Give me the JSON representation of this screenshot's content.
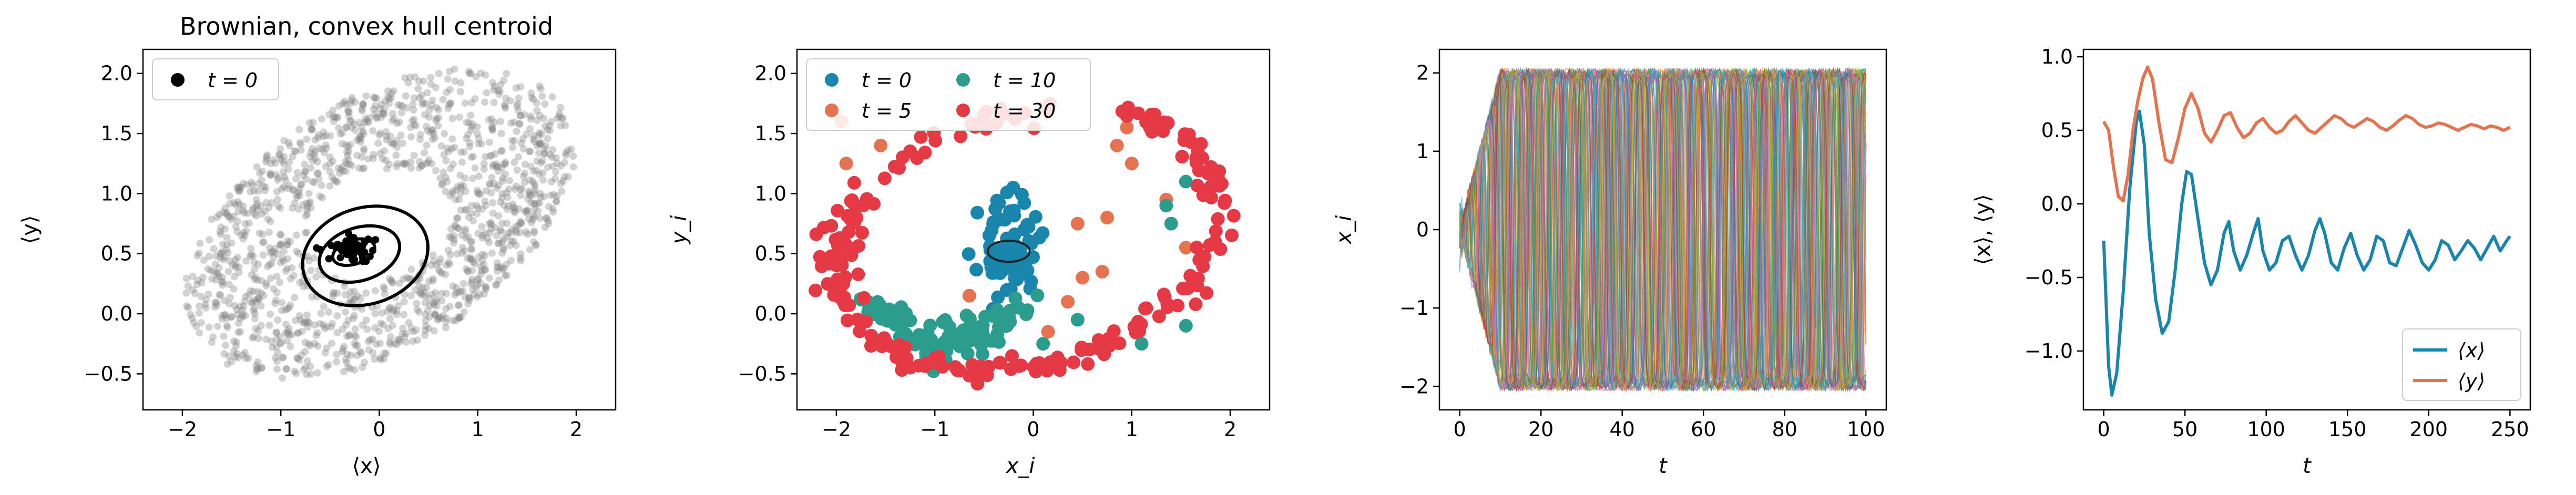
{
  "chart_data": [
    {
      "type": "scatter",
      "title": "Brownian, convex hull centroid",
      "xlabel": "⟨x⟩",
      "ylabel": "⟨y⟩",
      "xlim": [
        -2.4,
        2.4
      ],
      "ylim": [
        -0.8,
        2.2
      ],
      "xticks": [
        -2,
        -1,
        0,
        1,
        2
      ],
      "yticks": [
        -0.5,
        0.0,
        0.5,
        1.0,
        1.5,
        2.0
      ],
      "legend": {
        "position": "top-left",
        "entries": [
          {
            "label": "t = 0",
            "color": "#000000",
            "marker": "circle"
          }
        ]
      },
      "cloud_color": "#7f7f7f",
      "contour_color": "#000000",
      "points_t0": {
        "center": [
          -0.25,
          0.55
        ],
        "spread": [
          0.12,
          0.05
        ]
      }
    },
    {
      "type": "scatter",
      "xlabel": "x_i",
      "ylabel": "y_i",
      "xlim": [
        -2.4,
        2.4
      ],
      "ylim": [
        -0.8,
        2.2
      ],
      "xticks": [
        -2,
        -1,
        0,
        1,
        2
      ],
      "yticks": [
        -0.5,
        0.0,
        0.5,
        1.0,
        1.5,
        2.0
      ],
      "legend": {
        "position": "top-left",
        "columns": 2,
        "entries": [
          {
            "label": "t = 0",
            "color": "#1a85ac"
          },
          {
            "label": "t = 5",
            "color": "#e5734f"
          },
          {
            "label": "t = 10",
            "color": "#2a9d8f"
          },
          {
            "label": "t = 30",
            "color": "#e63946"
          }
        ]
      },
      "series": [
        {
          "name": "t = 0",
          "color": "#1a85ac",
          "shape": "blob",
          "center": [
            -0.25,
            0.55
          ],
          "spread": [
            0.15,
            0.2
          ]
        },
        {
          "name": "t = 5",
          "color": "#e5734f",
          "shape": "scattered",
          "points": [
            [
              0.85,
              1.4
            ],
            [
              0.95,
              1.55
            ],
            [
              0.75,
              0.8
            ],
            [
              0.45,
              0.75
            ],
            [
              0.5,
              0.3
            ],
            [
              0.35,
              0.1
            ],
            [
              0.7,
              0.35
            ],
            [
              1.35,
              0.95
            ],
            [
              1.55,
              0.55
            ],
            [
              1.0,
              1.25
            ],
            [
              0.15,
              -0.15
            ],
            [
              -0.65,
              0.15
            ],
            [
              -1.55,
              1.4
            ],
            [
              -1.95,
              1.6
            ],
            [
              -1.9,
              1.25
            ]
          ]
        },
        {
          "name": "t = 10",
          "color": "#2a9d8f",
          "shape": "arc",
          "arc": {
            "start": [
              -1.3,
              -0.3
            ],
            "end": [
              -0.3,
              -0.1
            ]
          },
          "extra": [
            [
              1.4,
              0.75
            ],
            [
              1.35,
              0.9
            ],
            [
              1.55,
              1.1
            ],
            [
              0.45,
              -0.05
            ],
            [
              0.1,
              -0.25
            ],
            [
              1.55,
              -0.1
            ],
            [
              1.1,
              -0.25
            ],
            [
              -0.15,
              0.05
            ]
          ]
        },
        {
          "name": "t = 30",
          "color": "#e63946",
          "shape": "ring",
          "ring": {
            "cx": -0.05,
            "cy": 0.62,
            "rx": 1.95,
            "ry": 1.05
          }
        }
      ]
    },
    {
      "type": "line",
      "xlabel": "t",
      "ylabel": "x_i",
      "xlim": [
        -5,
        105
      ],
      "ylim": [
        -2.3,
        2.3
      ],
      "xticks": [
        0,
        20,
        40,
        60,
        80,
        100
      ],
      "yticks": [
        -2,
        -1,
        0,
        1,
        2
      ],
      "trajectories": {
        "count": 60,
        "t_start": 0,
        "t_end": 100,
        "amplitude": 2.0,
        "period": 7.5
      },
      "palette": [
        "#1f77b4",
        "#ff7f0e",
        "#2ca02c",
        "#d62728",
        "#9467bd",
        "#8c564b",
        "#e377c2",
        "#7f7f7f",
        "#bcbd22",
        "#17becf"
      ]
    },
    {
      "type": "line",
      "xlabel": "t",
      "ylabel": "⟨x⟩, ⟨y⟩",
      "xlim": [
        -12.5,
        262.5
      ],
      "ylim": [
        -1.4,
        1.05
      ],
      "xticks": [
        0,
        50,
        100,
        150,
        200,
        250
      ],
      "yticks": [
        -1.0,
        -0.5,
        0.0,
        0.5,
        1.0
      ],
      "legend": {
        "position": "bottom-right",
        "entries": [
          {
            "label": "⟨x⟩",
            "color": "#1a85ac"
          },
          {
            "label": "⟨y⟩",
            "color": "#e5734f"
          }
        ]
      },
      "series": [
        {
          "name": "⟨x⟩",
          "color": "#1a85ac",
          "points": [
            [
              0,
              -0.25
            ],
            [
              3,
              -1.1
            ],
            [
              5,
              -1.3
            ],
            [
              8,
              -1.15
            ],
            [
              12,
              -0.6
            ],
            [
              16,
              0.1
            ],
            [
              20,
              0.55
            ],
            [
              22,
              0.63
            ],
            [
              25,
              0.4
            ],
            [
              28,
              -0.2
            ],
            [
              32,
              -0.65
            ],
            [
              36,
              -0.88
            ],
            [
              40,
              -0.8
            ],
            [
              44,
              -0.45
            ],
            [
              48,
              0.0
            ],
            [
              51,
              0.22
            ],
            [
              54,
              0.2
            ],
            [
              58,
              -0.1
            ],
            [
              62,
              -0.4
            ],
            [
              66,
              -0.55
            ],
            [
              70,
              -0.45
            ],
            [
              74,
              -0.2
            ],
            [
              77,
              -0.12
            ],
            [
              80,
              -0.32
            ],
            [
              84,
              -0.45
            ],
            [
              88,
              -0.35
            ],
            [
              92,
              -0.2
            ],
            [
              95,
              -0.1
            ],
            [
              98,
              -0.32
            ],
            [
              102,
              -0.45
            ],
            [
              106,
              -0.4
            ],
            [
              110,
              -0.25
            ],
            [
              114,
              -0.22
            ],
            [
              118,
              -0.35
            ],
            [
              122,
              -0.45
            ],
            [
              126,
              -0.35
            ],
            [
              130,
              -0.18
            ],
            [
              133,
              -0.1
            ],
            [
              136,
              -0.2
            ],
            [
              140,
              -0.4
            ],
            [
              144,
              -0.45
            ],
            [
              148,
              -0.3
            ],
            [
              152,
              -0.2
            ],
            [
              156,
              -0.35
            ],
            [
              160,
              -0.45
            ],
            [
              164,
              -0.38
            ],
            [
              168,
              -0.22
            ],
            [
              172,
              -0.25
            ],
            [
              176,
              -0.4
            ],
            [
              180,
              -0.42
            ],
            [
              184,
              -0.3
            ],
            [
              188,
              -0.18
            ],
            [
              192,
              -0.28
            ],
            [
              196,
              -0.4
            ],
            [
              200,
              -0.45
            ],
            [
              204,
              -0.38
            ],
            [
              208,
              -0.25
            ],
            [
              212,
              -0.28
            ],
            [
              216,
              -0.38
            ],
            [
              220,
              -0.32
            ],
            [
              224,
              -0.25
            ],
            [
              228,
              -0.3
            ],
            [
              232,
              -0.38
            ],
            [
              236,
              -0.3
            ],
            [
              240,
              -0.22
            ],
            [
              244,
              -0.32
            ],
            [
              248,
              -0.25
            ],
            [
              250,
              -0.22
            ]
          ]
        },
        {
          "name": "⟨y⟩",
          "color": "#e5734f",
          "points": [
            [
              0,
              0.56
            ],
            [
              3,
              0.5
            ],
            [
              6,
              0.25
            ],
            [
              9,
              0.05
            ],
            [
              12,
              0.02
            ],
            [
              15,
              0.2
            ],
            [
              18,
              0.5
            ],
            [
              21,
              0.7
            ],
            [
              24,
              0.85
            ],
            [
              27,
              0.93
            ],
            [
              30,
              0.85
            ],
            [
              34,
              0.55
            ],
            [
              38,
              0.3
            ],
            [
              42,
              0.28
            ],
            [
              46,
              0.45
            ],
            [
              50,
              0.65
            ],
            [
              54,
              0.75
            ],
            [
              58,
              0.65
            ],
            [
              62,
              0.48
            ],
            [
              66,
              0.42
            ],
            [
              70,
              0.5
            ],
            [
              74,
              0.6
            ],
            [
              78,
              0.62
            ],
            [
              82,
              0.52
            ],
            [
              86,
              0.45
            ],
            [
              90,
              0.48
            ],
            [
              94,
              0.55
            ],
            [
              98,
              0.58
            ],
            [
              102,
              0.52
            ],
            [
              106,
              0.48
            ],
            [
              110,
              0.5
            ],
            [
              114,
              0.56
            ],
            [
              118,
              0.6
            ],
            [
              122,
              0.55
            ],
            [
              126,
              0.5
            ],
            [
              130,
              0.48
            ],
            [
              134,
              0.52
            ],
            [
              138,
              0.56
            ],
            [
              142,
              0.6
            ],
            [
              146,
              0.58
            ],
            [
              150,
              0.54
            ],
            [
              154,
              0.52
            ],
            [
              158,
              0.55
            ],
            [
              162,
              0.58
            ],
            [
              166,
              0.56
            ],
            [
              170,
              0.52
            ],
            [
              174,
              0.5
            ],
            [
              178,
              0.53
            ],
            [
              182,
              0.57
            ],
            [
              186,
              0.6
            ],
            [
              190,
              0.58
            ],
            [
              194,
              0.54
            ],
            [
              198,
              0.52
            ],
            [
              202,
              0.53
            ],
            [
              206,
              0.55
            ],
            [
              210,
              0.54
            ],
            [
              214,
              0.52
            ],
            [
              218,
              0.5
            ],
            [
              222,
              0.52
            ],
            [
              226,
              0.54
            ],
            [
              230,
              0.53
            ],
            [
              234,
              0.51
            ],
            [
              238,
              0.53
            ],
            [
              242,
              0.52
            ],
            [
              246,
              0.5
            ],
            [
              250,
              0.52
            ]
          ]
        }
      ]
    }
  ]
}
